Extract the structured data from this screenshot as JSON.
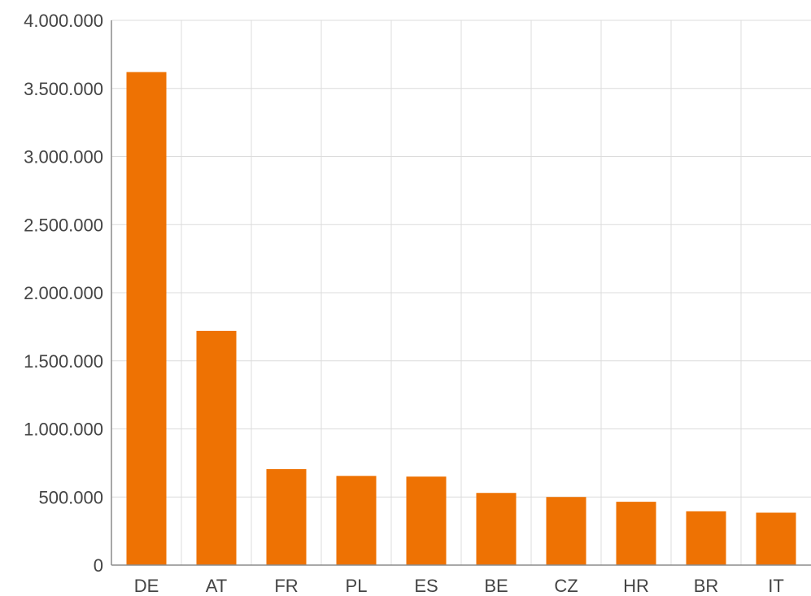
{
  "chart_data": {
    "type": "bar",
    "title": "",
    "xlabel": "",
    "ylabel": "",
    "categories": [
      "DE",
      "AT",
      "FR",
      "PL",
      "ES",
      "BE",
      "CZ",
      "HR",
      "BR",
      "IT"
    ],
    "values": [
      3620000,
      1720000,
      705000,
      655000,
      650000,
      530000,
      500000,
      465000,
      395000,
      385000
    ],
    "ylim": [
      0,
      4000000
    ],
    "yticks": [
      0,
      500000,
      1000000,
      1500000,
      2000000,
      2500000,
      3000000,
      3500000,
      4000000
    ],
    "ytick_labels": [
      "0",
      "500.000",
      "1.000.000",
      "1.500.000",
      "2.000.000",
      "2.500.000",
      "3.000.000",
      "3.500.000",
      "4.000.000"
    ],
    "grid": true,
    "legend": "none",
    "bar_color": "#ee7203",
    "grid_color": "#dcdcdc",
    "axis_color": "#8c8c8c",
    "label_color": "#444444"
  }
}
